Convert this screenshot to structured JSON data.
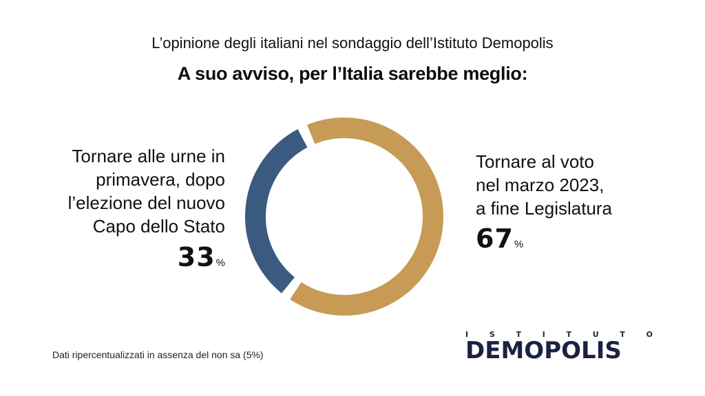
{
  "header": {
    "subtitle": "L’opinione degli italiani nel sondaggio dell’Istituto Demopolis",
    "title": "A suo avviso, per l’Italia sarebbe meglio:"
  },
  "labels": {
    "left_lines": [
      "Tornare alle urne in",
      "primavera, dopo",
      "l’elezione del nuovo",
      "Capo dello Stato"
    ],
    "left_value": "33",
    "right_lines": [
      "Tornare al voto",
      "nel marzo 2023,",
      "a fine Legislatura"
    ],
    "right_value": "67",
    "percent_sign": "%"
  },
  "chart_data": {
    "type": "pie",
    "donut": true,
    "title": "A suo avviso, per l’Italia sarebbe meglio:",
    "categories": [
      "Tornare al voto nel marzo 2023, a fine Legislatura",
      "Tornare alle urne in primavera, dopo l’elezione del nuovo Capo dello Stato"
    ],
    "values": [
      67,
      33
    ],
    "colors": [
      "#C79A55",
      "#3B5A7F"
    ],
    "unit": "%"
  },
  "footnote": "Dati ripercentualizzati in assenza del non sa (5%)",
  "logo": {
    "top_letters": [
      "I",
      "S",
      "T",
      "I",
      "T",
      "U",
      "T",
      "O"
    ],
    "name_before_o": "DEM",
    "name_o": "O",
    "name_after_o": "POLIS",
    "text_color": "#1B2244",
    "glow_color": "#F0AA3C"
  }
}
